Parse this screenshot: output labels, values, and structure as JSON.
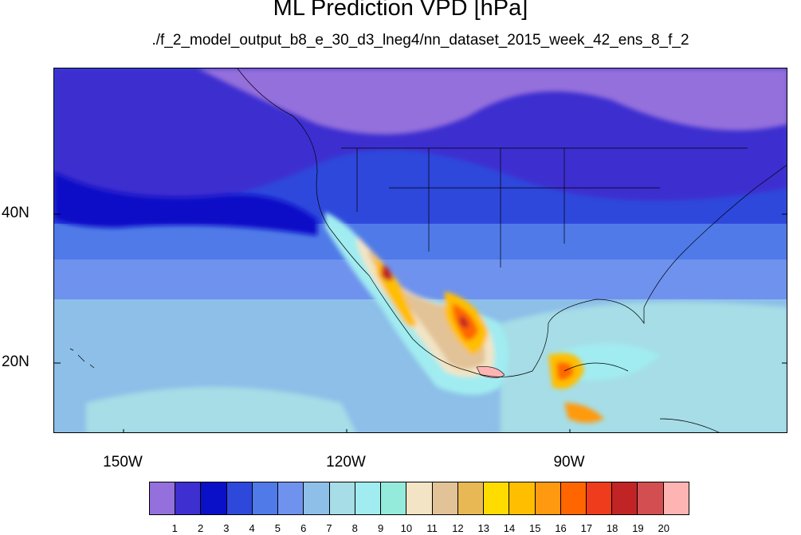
{
  "title": "ML Prediction VPD [hPa]",
  "subtitle": "./f_2_model_output_b8_e_30_d3_lneg4/nn_dataset_2015_week_42_ens_8_f_2",
  "lon_labels": [
    "150W",
    "120W",
    "90W"
  ],
  "lat_labels": [
    "40N",
    "20N"
  ],
  "colorbar": {
    "labels": [
      "1",
      "2",
      "3",
      "4",
      "5",
      "6",
      "7",
      "8",
      "9",
      "10",
      "11",
      "12",
      "13",
      "14",
      "15",
      "16",
      "17",
      "18",
      "19",
      "20"
    ],
    "colors": [
      "#9470dc",
      "#3d2fd0",
      "#0a0fc8",
      "#2e48dc",
      "#4f7ae8",
      "#6f92ee",
      "#8dbfe8",
      "#a6dde6",
      "#a0ecf0",
      "#94eadb",
      "#f2e4c4",
      "#e2c297",
      "#e8b855",
      "#ffdc00",
      "#ffbe00",
      "#ff9a10",
      "#ff6600",
      "#ee3c1c",
      "#c02424",
      "#d24e50",
      "#ffb4b4"
    ]
  }
}
